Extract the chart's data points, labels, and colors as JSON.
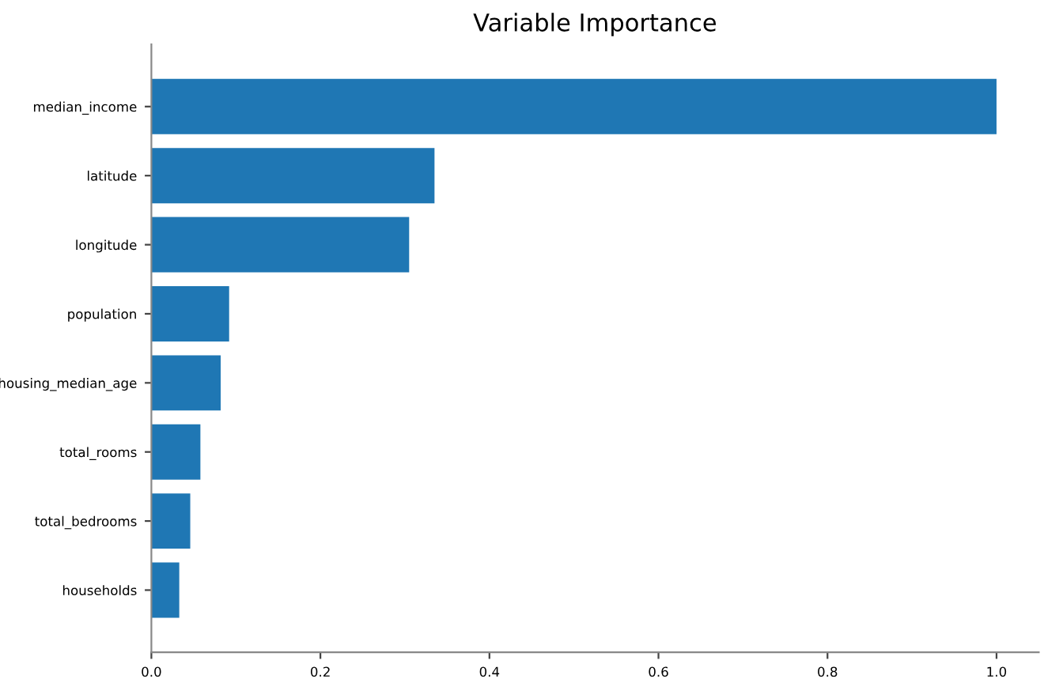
{
  "chart_data": {
    "type": "bar",
    "orientation": "horizontal",
    "title": "Variable Importance",
    "categories": [
      "median_income",
      "latitude",
      "longitude",
      "population",
      "housing_median_age",
      "total_rooms",
      "total_bedrooms",
      "households"
    ],
    "values": [
      1.0,
      0.335,
      0.305,
      0.092,
      0.082,
      0.058,
      0.046,
      0.033
    ],
    "color": "#1f77b4",
    "xlim": [
      0,
      1.05
    ],
    "xticks": [
      {
        "value": 0.0,
        "label": "0.0"
      },
      {
        "value": 0.2,
        "label": "0.2"
      },
      {
        "value": 0.4,
        "label": "0.4"
      },
      {
        "value": 0.6,
        "label": "0.6"
      },
      {
        "value": 0.8,
        "label": "0.8"
      },
      {
        "value": 1.0,
        "label": "1.0"
      }
    ],
    "grid": false,
    "legend": false
  }
}
